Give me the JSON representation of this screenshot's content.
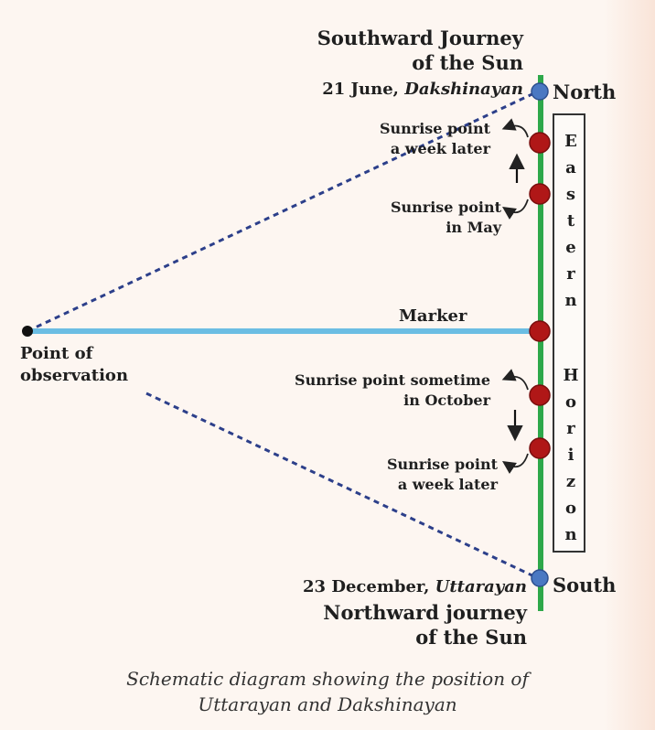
{
  "top_label": {
    "line1": "Southward Journey",
    "line2": "of the Sun"
  },
  "north_date": {
    "date": "21 June,",
    "term": "Dakshinayan"
  },
  "north_label": "North",
  "south_label": "South",
  "sunrise_week_later_top": {
    "line1": "Sunrise point",
    "line2": "a week later"
  },
  "sunrise_may": {
    "line1": "Sunrise point",
    "line2": "in May"
  },
  "marker_label": "Marker",
  "observation": {
    "line1": "Point of",
    "line2": "observation"
  },
  "sunrise_october": {
    "line1": "Sunrise point sometime",
    "line2": "in October"
  },
  "sunrise_week_later_bottom": {
    "line1": "Sunrise point",
    "line2": "a week later"
  },
  "south_date": {
    "date": "23 December,",
    "term": "Uttarayan"
  },
  "bottom_label": {
    "line1": "Northward journey",
    "line2": "of the Sun"
  },
  "horizon_letters": [
    "E",
    "a",
    "s",
    "t",
    "e",
    "r",
    "n",
    "",
    "H",
    "o",
    "r",
    "i",
    "z",
    "o",
    "n"
  ],
  "caption": {
    "line1": "Schematic diagram showing the position of",
    "line2": "Uttarayan and Dakshinayan"
  },
  "colors": {
    "horizon_line": "#2ea84a",
    "marker_line": "#6bbde3",
    "sun_point": "#b01717",
    "pole_point": "#4a78c2",
    "sight_line": "#2c3f8a"
  }
}
